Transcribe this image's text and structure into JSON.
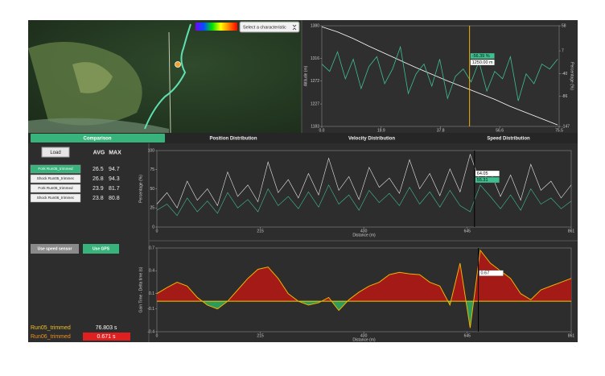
{
  "map": {
    "select_label": "Select a characteristic"
  },
  "tabs": [
    "Comparison",
    "Position Distribution",
    "Velocity Distribution",
    "Speed Distribution"
  ],
  "panel": {
    "load": "Load",
    "avg_header": "AVG",
    "max_header": "MAX",
    "rows": [
      {
        "label": "Fork Run05_trimmed",
        "avg": 26.5,
        "max": 94.7
      },
      {
        "label": "Shock Run05_trimmec",
        "avg": 26.8,
        "max": 94.3
      },
      {
        "label": "Fork Run06_trimmed",
        "avg": 23.9,
        "max": 81.7
      },
      {
        "label": "Shock Run06_trimmec",
        "avg": 23.8,
        "max": 80.8
      }
    ],
    "speed_button": "Use speed sensor",
    "gps_button": "Use GPS"
  },
  "results": [
    {
      "name": "Run05_trimmed",
      "value": "76.803 s"
    },
    {
      "name": "Run06_trimmed",
      "value": "0.671 s"
    }
  ],
  "chart_data": [
    {
      "type": "line",
      "y_label": "Altitude (m)",
      "y2_label": "Percentage (%)",
      "xlim": [
        0,
        75.5
      ],
      "xticks": [
        {
          "value": 0,
          "label": "0.0"
        },
        18.9,
        37.8,
        56.6,
        75.5
      ],
      "ylim": [
        1183,
        1380
      ],
      "yticks": [
        1183,
        1227,
        1272,
        1316,
        1380
      ],
      "y2lim": [
        -147,
        58
      ],
      "y2ticks": [
        -147,
        -86,
        -40,
        7,
        58
      ],
      "grid": false,
      "cursor_x": 47,
      "cursor_color": "#f0b400",
      "annotations": [
        {
          "text": "-56.39 %",
          "bg": "#3fbf8f"
        },
        {
          "text": "1250.00 m",
          "bg": "#ffffff"
        }
      ],
      "series": [
        {
          "color": "#ffffff",
          "x": [
            0,
            5,
            10,
            15,
            20,
            25,
            30,
            35,
            40,
            45,
            50,
            55,
            60,
            65,
            70,
            75
          ],
          "values": [
            1378,
            1368,
            1355,
            1340,
            1326,
            1312,
            1298,
            1285,
            1272,
            1260,
            1248,
            1236,
            1222,
            1210,
            1198,
            1186
          ]
        },
        {
          "color": "#3fbf8f",
          "axis": "y2",
          "x": [
            0,
            2.5,
            5,
            7.5,
            10,
            12.5,
            15,
            17.5,
            20,
            22.5,
            25,
            27.5,
            30,
            32.5,
            35,
            37.5,
            40,
            42.5,
            45,
            47.5,
            50,
            52.5,
            55,
            57.5,
            60,
            62.5,
            65,
            67.5,
            70,
            72.5,
            75
          ],
          "values": [
            -20,
            -35,
            5,
            -50,
            -10,
            -70,
            -25,
            -5,
            -60,
            -30,
            15,
            -80,
            -40,
            -20,
            -65,
            -10,
            -90,
            -45,
            -30,
            -56.39,
            -15,
            -75,
            -35,
            -50,
            -5,
            -95,
            -40,
            -60,
            -20,
            -30,
            -10
          ]
        }
      ]
    },
    {
      "type": "line",
      "y_label": "Percentage (%)",
      "x_label": "Distance (m)",
      "xlim": [
        0,
        861
      ],
      "xticks": [
        0,
        215,
        430,
        645,
        861
      ],
      "ylim": [
        0,
        100
      ],
      "yticks": [
        0,
        25,
        50,
        75,
        100
      ],
      "grid": false,
      "cursor_x": 660,
      "cursor_color": "#000000",
      "annotations": [
        {
          "text": "64.05",
          "bg": "#ffffff"
        },
        {
          "text": "55.31",
          "bg": "#3fbf8f"
        }
      ],
      "x": [
        0,
        21,
        42,
        63,
        84,
        105,
        126,
        147,
        168,
        189,
        210,
        231,
        252,
        273,
        294,
        315,
        336,
        357,
        378,
        399,
        420,
        441,
        462,
        483,
        504,
        525,
        546,
        567,
        588,
        609,
        630,
        651,
        672,
        693,
        714,
        735,
        756,
        777,
        798,
        819,
        840,
        861
      ],
      "series": [
        {
          "color": "#e8e8e8",
          "values": [
            30,
            45,
            25,
            60,
            35,
            50,
            28,
            72,
            40,
            55,
            33,
            85,
            45,
            62,
            38,
            70,
            42,
            90,
            48,
            66,
            36,
            78,
            52,
            64,
            44,
            88,
            50,
            70,
            41,
            76,
            46,
            95,
            58,
            72,
            40,
            68,
            35,
            82,
            48,
            60,
            38,
            55
          ]
        },
        {
          "color": "#3fbf8f",
          "values": [
            22,
            30,
            15,
            38,
            20,
            34,
            18,
            45,
            25,
            36,
            20,
            50,
            28,
            40,
            24,
            46,
            26,
            55,
            30,
            42,
            22,
            48,
            32,
            44,
            28,
            52,
            30,
            46,
            26,
            48,
            28,
            20,
            55,
            40,
            24,
            42,
            22,
            50,
            30,
            38,
            24,
            34
          ]
        }
      ]
    },
    {
      "type": "area",
      "y_label": "Gain Time - Delta time (s)",
      "x_label": "Distance (m)",
      "xlim": [
        0,
        861
      ],
      "xticks": [
        0,
        215,
        430,
        645,
        861
      ],
      "ylim": [
        -0.4,
        0.7
      ],
      "yticks": [
        -0.4,
        -0.1,
        0.1,
        0.4,
        0.7
      ],
      "grid": false,
      "cursor_x": 668,
      "cursor_color": "#000000",
      "baseline_color": "#f0d000",
      "above_color": "#a31a16",
      "below_color": "#2e9a5c",
      "annotations": [
        {
          "text": "0.67",
          "bg": "#ffffff"
        }
      ],
      "x": [
        0,
        21,
        42,
        63,
        84,
        105,
        126,
        147,
        168,
        189,
        210,
        231,
        252,
        273,
        294,
        315,
        336,
        357,
        378,
        399,
        420,
        441,
        462,
        483,
        504,
        525,
        546,
        567,
        588,
        609,
        630,
        651,
        672,
        693,
        714,
        735,
        756,
        777,
        798,
        819,
        840,
        861
      ],
      "series": [
        {
          "color": "#f0b400",
          "values": [
            0.1,
            0.18,
            0.25,
            0.2,
            0.05,
            -0.05,
            -0.1,
            0,
            0.15,
            0.3,
            0.42,
            0.45,
            0.3,
            0.1,
            0,
            -0.05,
            -0.02,
            0.05,
            -0.12,
            0.02,
            0.12,
            0.2,
            0.25,
            0.35,
            0.38,
            0.36,
            0.35,
            0.25,
            0.2,
            -0.05,
            0.5,
            -0.35,
            0.67,
            0.5,
            0.4,
            0.3,
            0.1,
            0.02,
            0.15,
            0.2,
            0.25,
            0.3
          ]
        }
      ]
    }
  ]
}
